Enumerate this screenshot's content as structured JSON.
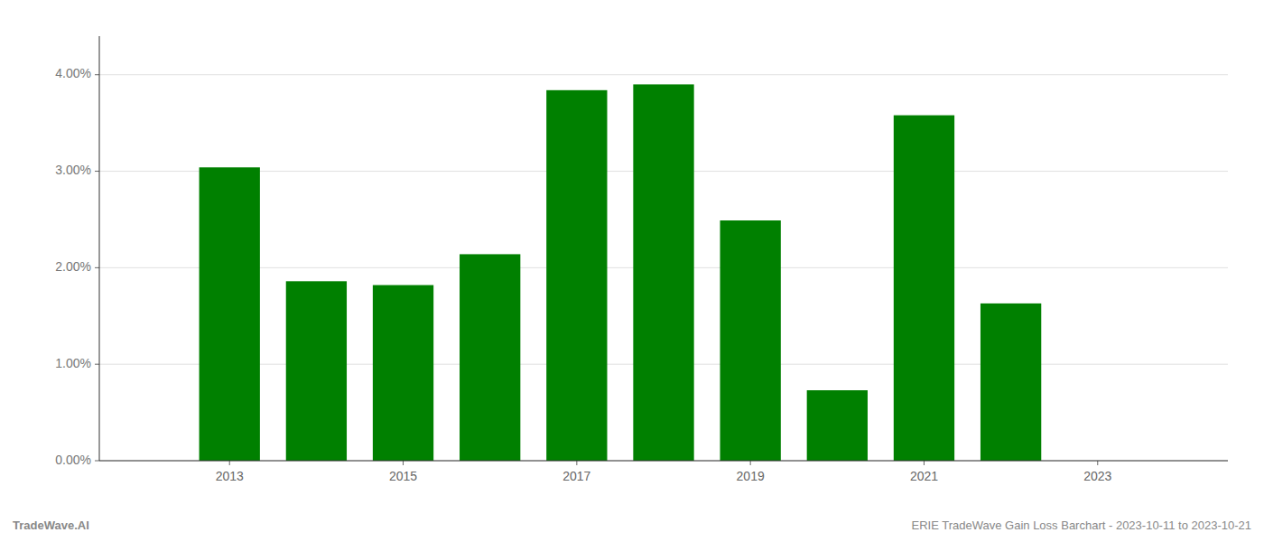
{
  "chart_data": {
    "type": "bar",
    "x": [
      2013,
      2014,
      2015,
      2016,
      2017,
      2018,
      2019,
      2020,
      2021,
      2022
    ],
    "values": [
      0.0304,
      0.0186,
      0.0182,
      0.0214,
      0.0384,
      0.039,
      0.0249,
      0.0073,
      0.0358,
      0.0163
    ],
    "color": "#008000",
    "xlim": [
      2011.5,
      2024.5
    ],
    "xticks": [
      2013,
      2015,
      2017,
      2019,
      2021,
      2023
    ],
    "ylim": [
      0,
      0.044
    ],
    "yticks": [
      {
        "value": 0.0,
        "label": "0.00%"
      },
      {
        "value": 0.01,
        "label": "1.00%"
      },
      {
        "value": 0.02,
        "label": "2.00%"
      },
      {
        "value": 0.03,
        "label": "3.00%"
      },
      {
        "value": 0.04,
        "label": "4.00%"
      }
    ],
    "grid": true,
    "annotations": [
      "TradeWave.AI",
      "ERIE TradeWave Gain Loss Barchart - 2023-10-11 to 2023-10-21"
    ]
  }
}
